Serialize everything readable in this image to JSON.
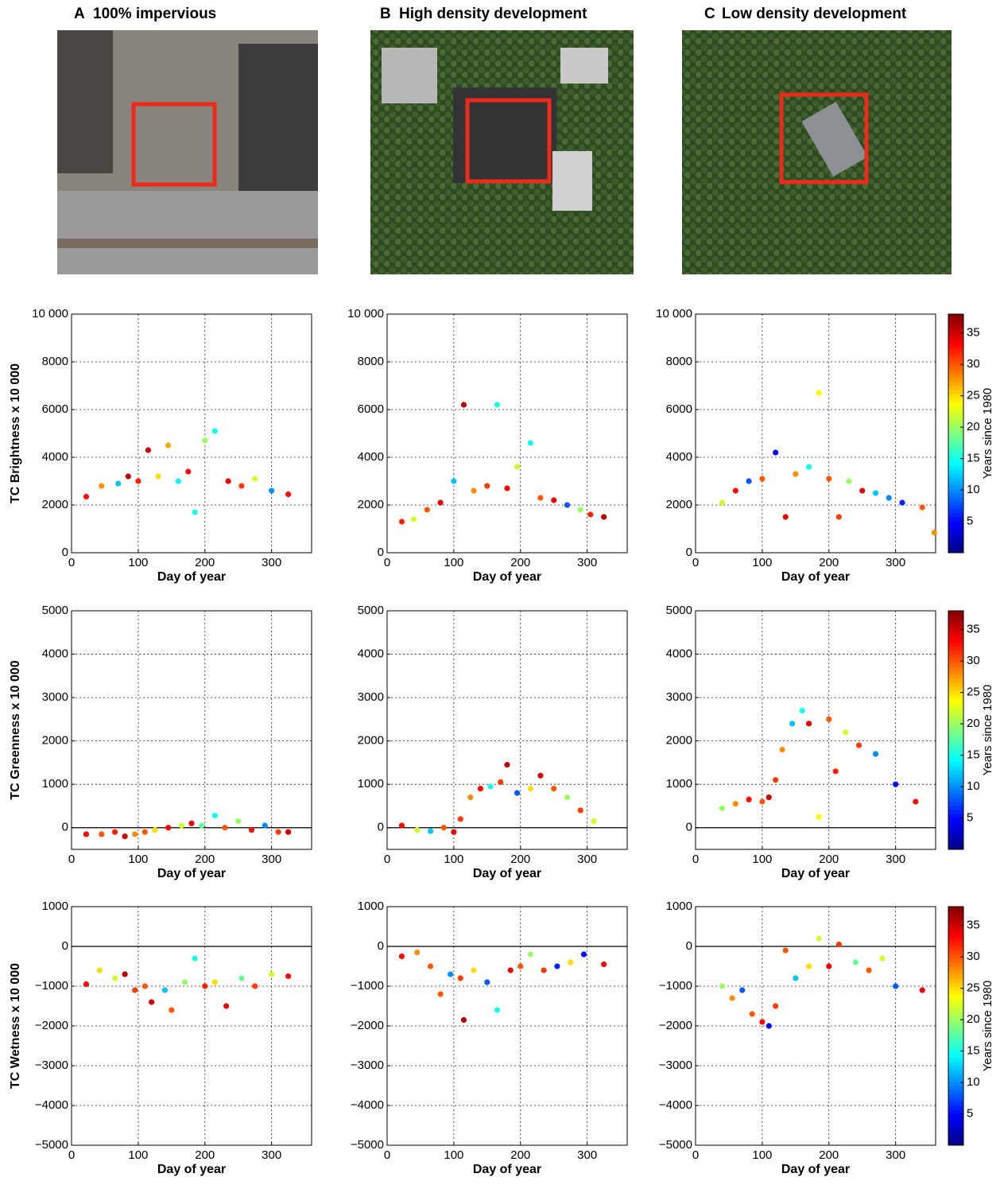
{
  "panels": [
    {
      "label": "A",
      "title": "100% impervious"
    },
    {
      "label": "B",
      "title": "High density development"
    },
    {
      "label": "C",
      "title": "Low density development"
    }
  ],
  "chart_data": [
    {
      "type": "scatter",
      "xlabel": "Day of year",
      "ylabel": "TC Brightness x 10 000",
      "xlim": [
        0,
        360
      ],
      "xticks": [
        0,
        100,
        200,
        300
      ],
      "ylim": [
        0,
        10000
      ],
      "yticks": [
        0,
        2000,
        4000,
        6000,
        8000,
        {
          "value": 10000,
          "label": "10 000"
        }
      ],
      "grid": true,
      "zero_line": false,
      "colormap": "jet",
      "clim": [
        0,
        38
      ],
      "x": [
        22,
        45,
        70,
        85,
        100,
        115,
        130,
        145,
        160,
        175,
        185,
        200,
        215,
        235,
        255,
        275,
        300,
        325
      ],
      "y": [
        2350,
        2800,
        2900,
        3200,
        3000,
        4300,
        3200,
        4500,
        3000,
        3400,
        1700,
        4700,
        5100,
        3000,
        2800,
        3100,
        2600,
        2450
      ],
      "c": [
        33,
        28,
        12,
        36,
        32,
        35,
        25,
        27,
        14,
        33,
        15,
        20,
        15,
        34,
        31,
        22,
        10,
        33
      ]
    },
    {
      "type": "scatter",
      "xlabel": "Day of year",
      "xlim": [
        0,
        360
      ],
      "xticks": [
        0,
        100,
        200,
        300
      ],
      "ylim": [
        0,
        10000
      ],
      "yticks": [
        0,
        2000,
        4000,
        6000,
        8000,
        {
          "value": 10000,
          "label": "10 000"
        }
      ],
      "grid": true,
      "zero_line": false,
      "colormap": "jet",
      "clim": [
        0,
        38
      ],
      "x": [
        22,
        40,
        60,
        80,
        100,
        115,
        130,
        150,
        165,
        180,
        195,
        215,
        230,
        250,
        270,
        290,
        305,
        325
      ],
      "y": [
        1300,
        1400,
        1800,
        2100,
        3000,
        6200,
        2600,
        2800,
        6200,
        2700,
        3600,
        4600,
        2300,
        2200,
        2000,
        1800,
        1600,
        1500
      ],
      "c": [
        32,
        22,
        30,
        34,
        12,
        36,
        28,
        31,
        15,
        33,
        22,
        15,
        30,
        34,
        8,
        20,
        32,
        36
      ]
    },
    {
      "type": "scatter",
      "xlabel": "Day of year",
      "xlim": [
        0,
        360
      ],
      "xticks": [
        0,
        100,
        200,
        300
      ],
      "ylim": [
        0,
        10000
      ],
      "yticks": [
        0,
        2000,
        4000,
        6000,
        8000,
        {
          "value": 10000,
          "label": "10 000"
        }
      ],
      "grid": true,
      "zero_line": false,
      "colormap": "jet",
      "clim": [
        0,
        38
      ],
      "colorbar": {
        "label": "Years since 1980",
        "ticks": [
          5,
          10,
          15,
          20,
          25,
          30,
          35
        ]
      },
      "x": [
        40,
        60,
        80,
        100,
        120,
        135,
        150,
        170,
        185,
        200,
        215,
        230,
        250,
        270,
        290,
        310,
        340,
        358
      ],
      "y": [
        2100,
        2600,
        3000,
        3100,
        4200,
        1500,
        3300,
        3600,
        6700,
        3100,
        1500,
        3000,
        2600,
        2500,
        2300,
        2100,
        1900,
        850
      ],
      "c": [
        22,
        33,
        8,
        30,
        5,
        34,
        28,
        15,
        24,
        30,
        31,
        20,
        34,
        12,
        10,
        6,
        30,
        28
      ]
    },
    {
      "type": "scatter",
      "xlabel": "Day of year",
      "ylabel": "TC Greenness x 10 000",
      "xlim": [
        0,
        360
      ],
      "xticks": [
        0,
        100,
        200,
        300
      ],
      "ylim": [
        -500,
        5000
      ],
      "yticks": [
        0,
        1000,
        2000,
        3000,
        4000,
        5000
      ],
      "grid": true,
      "zero_line": true,
      "colormap": "jet",
      "clim": [
        0,
        38
      ],
      "x": [
        22,
        45,
        65,
        80,
        95,
        110,
        125,
        145,
        165,
        180,
        195,
        215,
        230,
        250,
        270,
        290,
        310,
        325
      ],
      "y": [
        -150,
        -150,
        -100,
        -200,
        -150,
        -100,
        -50,
        0,
        50,
        100,
        50,
        280,
        0,
        150,
        -50,
        50,
        -100,
        -100
      ],
      "c": [
        33,
        30,
        32,
        35,
        28,
        30,
        25,
        33,
        22,
        34,
        18,
        15,
        30,
        20,
        33,
        10,
        31,
        35
      ]
    },
    {
      "type": "scatter",
      "xlabel": "Day of year",
      "xlim": [
        0,
        360
      ],
      "xticks": [
        0,
        100,
        200,
        300
      ],
      "ylim": [
        -500,
        5000
      ],
      "yticks": [
        0,
        1000,
        2000,
        3000,
        4000,
        5000
      ],
      "grid": true,
      "zero_line": true,
      "colormap": "jet",
      "clim": [
        0,
        38
      ],
      "x": [
        22,
        45,
        65,
        85,
        100,
        110,
        125,
        140,
        155,
        170,
        180,
        195,
        215,
        230,
        250,
        270,
        290,
        310
      ],
      "y": [
        50,
        -50,
        -80,
        0,
        -100,
        200,
        700,
        900,
        950,
        1050,
        1450,
        800,
        900,
        1200,
        900,
        700,
        400,
        150
      ],
      "c": [
        33,
        22,
        12,
        30,
        34,
        31,
        28,
        33,
        15,
        31,
        36,
        8,
        25,
        35,
        30,
        20,
        31,
        22
      ]
    },
    {
      "type": "scatter",
      "xlabel": "Day of year",
      "xlim": [
        0,
        360
      ],
      "xticks": [
        0,
        100,
        200,
        300
      ],
      "ylim": [
        -500,
        5000
      ],
      "yticks": [
        0,
        1000,
        2000,
        3000,
        4000,
        5000
      ],
      "grid": true,
      "zero_line": true,
      "colormap": "jet",
      "clim": [
        0,
        38
      ],
      "colorbar": {
        "label": "Years since 1980",
        "ticks": [
          5,
          10,
          15,
          20,
          25,
          30,
          35
        ]
      },
      "x": [
        40,
        60,
        80,
        100,
        110,
        120,
        130,
        145,
        160,
        170,
        185,
        200,
        210,
        225,
        245,
        270,
        300,
        330
      ],
      "y": [
        450,
        550,
        650,
        600,
        700,
        1100,
        1800,
        2400,
        2700,
        2400,
        250,
        2500,
        1300,
        2200,
        1900,
        1700,
        1000,
        600
      ],
      "c": [
        20,
        28,
        33,
        30,
        35,
        31,
        28,
        12,
        15,
        34,
        24,
        30,
        32,
        22,
        31,
        10,
        5,
        33
      ]
    },
    {
      "type": "scatter",
      "xlabel": "Day of year",
      "ylabel": "TC Wetness x 10 000",
      "xlim": [
        0,
        360
      ],
      "xticks": [
        0,
        100,
        200,
        300
      ],
      "ylim": [
        -5000,
        1000
      ],
      "yticks": [
        {
          "value": -5000,
          "label": "−5000"
        },
        {
          "value": -4000,
          "label": "−4000"
        },
        {
          "value": -3000,
          "label": "−3000"
        },
        {
          "value": -2000,
          "label": "−2000"
        },
        {
          "value": -1000,
          "label": "−1000"
        },
        0,
        1000
      ],
      "grid": true,
      "zero_line": true,
      "colormap": "jet",
      "clim": [
        0,
        38
      ],
      "x": [
        22,
        42,
        65,
        80,
        95,
        110,
        120,
        140,
        150,
        170,
        185,
        200,
        215,
        232,
        255,
        275,
        300,
        325
      ],
      "y": [
        -950,
        -600,
        -800,
        -700,
        -1100,
        -1000,
        -1400,
        -1100,
        -1600,
        -900,
        -300,
        -1000,
        -900,
        -1500,
        -800,
        -1000,
        -700,
        -750
      ],
      "c": [
        33,
        25,
        22,
        36,
        31,
        30,
        35,
        12,
        30,
        20,
        15,
        32,
        25,
        34,
        18,
        31,
        22,
        33
      ]
    },
    {
      "type": "scatter",
      "xlabel": "Day of year",
      "xlim": [
        0,
        360
      ],
      "xticks": [
        0,
        100,
        200,
        300
      ],
      "ylim": [
        -5000,
        1000
      ],
      "yticks": [
        {
          "value": -5000,
          "label": "−5000"
        },
        {
          "value": -4000,
          "label": "−4000"
        },
        {
          "value": -3000,
          "label": "−3000"
        },
        {
          "value": -2000,
          "label": "−2000"
        },
        {
          "value": -1000,
          "label": "−1000"
        },
        0,
        1000
      ],
      "grid": true,
      "zero_line": true,
      "colormap": "jet",
      "clim": [
        0,
        38
      ],
      "x": [
        22,
        45,
        65,
        80,
        95,
        110,
        115,
        130,
        150,
        165,
        185,
        200,
        215,
        235,
        255,
        275,
        295,
        325
      ],
      "y": [
        -250,
        -150,
        -500,
        -1200,
        -700,
        -800,
        -1850,
        -600,
        -900,
        -1600,
        -600,
        -500,
        -200,
        -600,
        -500,
        -400,
        -200,
        -450
      ],
      "c": [
        33,
        28,
        30,
        30,
        10,
        31,
        36,
        25,
        8,
        15,
        34,
        30,
        20,
        31,
        6,
        25,
        5,
        33
      ]
    },
    {
      "type": "scatter",
      "xlabel": "Day of year",
      "xlim": [
        0,
        360
      ],
      "xticks": [
        0,
        100,
        200,
        300
      ],
      "ylim": [
        -5000,
        1000
      ],
      "yticks": [
        {
          "value": -5000,
          "label": "−5000"
        },
        {
          "value": -4000,
          "label": "−4000"
        },
        {
          "value": -3000,
          "label": "−3000"
        },
        {
          "value": -2000,
          "label": "−2000"
        },
        {
          "value": -1000,
          "label": "−1000"
        },
        0,
        1000
      ],
      "grid": true,
      "zero_line": true,
      "colormap": "jet",
      "clim": [
        0,
        38
      ],
      "colorbar": {
        "label": "Years since 1980",
        "ticks": [
          5,
          10,
          15,
          20,
          25,
          30,
          35
        ]
      },
      "x": [
        40,
        55,
        70,
        85,
        100,
        110,
        120,
        135,
        150,
        170,
        185,
        200,
        215,
        240,
        260,
        280,
        300,
        340
      ],
      "y": [
        -1000,
        -1300,
        -1100,
        -1700,
        -1900,
        -2000,
        -1500,
        -100,
        -800,
        -500,
        200,
        -500,
        50,
        -400,
        -600,
        -300,
        -1000,
        -1100
      ],
      "c": [
        20,
        28,
        8,
        30,
        33,
        5,
        31,
        30,
        12,
        25,
        22,
        34,
        31,
        18,
        30,
        22,
        8,
        34
      ]
    }
  ]
}
